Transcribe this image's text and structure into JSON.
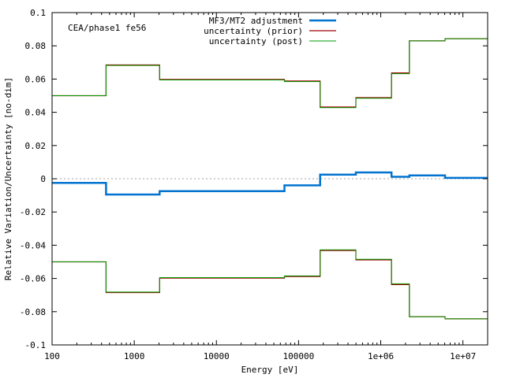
{
  "chart_data": {
    "type": "line",
    "step": true,
    "x_scale": "log",
    "xlim": [
      100,
      20000000
    ],
    "ylim": [
      -0.1,
      0.1
    ],
    "xlabel": "Energy [eV]",
    "ylabel": "Relative Variation/Uncertainty [no-dim]",
    "annotation": "CEA/phase1 fe56",
    "x_ticks": [
      {
        "value": 100,
        "label": "100"
      },
      {
        "value": 1000,
        "label": "1000"
      },
      {
        "value": 10000,
        "label": "10000"
      },
      {
        "value": 100000,
        "label": "100000"
      },
      {
        "value": 1000000,
        "label": "1e+06"
      },
      {
        "value": 10000000,
        "label": "1e+07"
      }
    ],
    "y_ticks": [
      {
        "value": 0.1,
        "label": "0.1"
      },
      {
        "value": 0.08,
        "label": "0.08"
      },
      {
        "value": 0.06,
        "label": "0.06"
      },
      {
        "value": 0.04,
        "label": "0.04"
      },
      {
        "value": 0.02,
        "label": "0.02"
      },
      {
        "value": 0,
        "label": "0"
      },
      {
        "value": -0.02,
        "label": "-0.02"
      },
      {
        "value": -0.04,
        "label": "-0.04"
      },
      {
        "value": -0.06,
        "label": "-0.06"
      },
      {
        "value": -0.08,
        "label": "-0.08"
      },
      {
        "value": -0.1,
        "label": "-0.1"
      }
    ],
    "zero_line": true,
    "legend_position": "top-right",
    "bin_edges": [
      100,
      454,
      2035,
      67380,
      183000,
      498000,
      1353000,
      2231000,
      6065000,
      20000000
    ],
    "series": [
      {
        "name": "MF3/MT2 adjustment",
        "color": "#0072d0",
        "width": 2.5,
        "values": [
          -0.0025,
          -0.0095,
          -0.0075,
          -0.004,
          0.0025,
          0.0038,
          0.0012,
          0.002,
          0.0005
        ],
        "mirror": false
      },
      {
        "name": "uncertainty (prior)",
        "color": "#a00000",
        "width": 1.2,
        "values": [
          0.05,
          0.0685,
          0.0598,
          0.0588,
          0.0432,
          0.0488,
          0.0637,
          0.083,
          0.0843
        ],
        "mirror": true
      },
      {
        "name": "uncertainty (post)",
        "color": "#009900",
        "width": 1.0,
        "values": [
          0.05,
          0.0682,
          0.0595,
          0.0585,
          0.0428,
          0.0485,
          0.0632,
          0.083,
          0.0843
        ],
        "mirror": true
      }
    ]
  }
}
